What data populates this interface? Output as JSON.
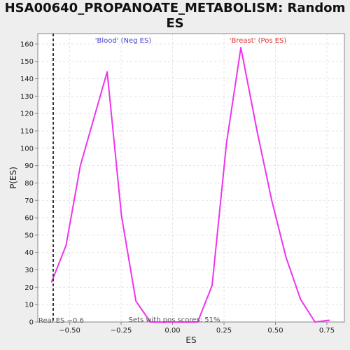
{
  "chart_data": {
    "type": "line",
    "title": "HSA00640_PROPANOATE_METABOLISM: Random ES distribution",
    "title_lines": [
      "HSA00640_PROPANOATE_METABOLISM: Random ES",
      "distribution"
    ],
    "xlabel": "ES",
    "ylabel": "P(ES)",
    "xlim": [
      -0.655,
      0.835
    ],
    "ylim": [
      0,
      166
    ],
    "xticks": [
      -0.5,
      -0.25,
      0.0,
      0.25,
      0.5,
      0.75
    ],
    "xtick_labels": [
      "−0.50",
      "−0.25",
      "0.00",
      "0.25",
      "0.50",
      "0.75"
    ],
    "yticks": [
      0,
      10,
      20,
      30,
      40,
      50,
      60,
      70,
      80,
      90,
      100,
      110,
      120,
      130,
      140,
      150,
      160
    ],
    "ytick_labels": [
      "0",
      "10",
      "20",
      "30",
      "40",
      "50",
      "60",
      "70",
      "80",
      "90",
      "100",
      "110",
      "120",
      "130",
      "140",
      "150",
      "160"
    ],
    "grid": true,
    "series": [
      {
        "color": "#ee33ee",
        "x": [
          -0.588,
          -0.518,
          -0.448,
          -0.388,
          -0.318,
          -0.248,
          -0.178,
          -0.108,
          -0.038,
          0.032,
          0.122,
          0.192,
          0.262,
          0.332,
          0.412,
          0.482,
          0.552,
          0.622,
          0.692,
          0.762
        ],
        "y": [
          23,
          44,
          90,
          115,
          144,
          61,
          12,
          0,
          0,
          0,
          0,
          21,
          103,
          158,
          109,
          70,
          37,
          13,
          0,
          1
        ]
      }
    ],
    "real_es": {
      "value": -0.58,
      "label": "Real ES −0.6",
      "line_color": "#333333"
    },
    "annotations": {
      "neg": {
        "text": "'Blood' (Neg ES)",
        "color": "#4444cc",
        "x": -0.24
      },
      "pos": {
        "text": "'Breast' (Pos ES)",
        "color": "#dd3333",
        "x": 0.415
      },
      "pos_scores": "Sets with pos scores: 51%"
    },
    "colors": {
      "plot_bg": "#ffffff",
      "page_bg": "#eeeeee",
      "grid": "#e3e3e3",
      "axis": "#888888",
      "text": "#222222"
    }
  }
}
